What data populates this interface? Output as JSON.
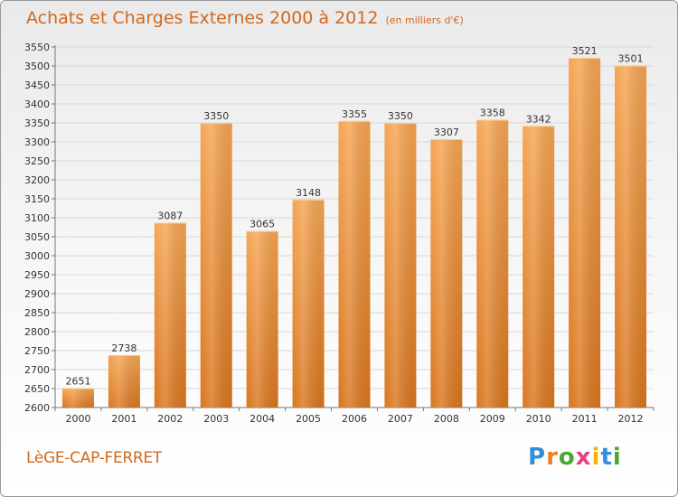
{
  "header": {
    "title": "Achats et Charges Externes 2000 à 2012",
    "subtitle": "(en milliers d'€)"
  },
  "footer": {
    "city": "LèGE-CAP-FERRET",
    "brand_letters": [
      "P",
      "r",
      "o",
      "x",
      "i",
      "t",
      "i"
    ],
    "brand_colors": [
      "#2f8fd8",
      "#f07c1e",
      "#4aa832",
      "#e83f86",
      "#f4b400",
      "#2f8fd8",
      "#4aa832"
    ]
  },
  "colors": {
    "bar_light": "#f5a553",
    "bar_dark": "#d9761f",
    "grid": "#d8d8d8",
    "title": "#d2691e"
  },
  "chart_data": {
    "type": "bar",
    "categories": [
      "2000",
      "2001",
      "2002",
      "2003",
      "2004",
      "2005",
      "2006",
      "2007",
      "2008",
      "2009",
      "2010",
      "2011",
      "2012"
    ],
    "values": [
      2651,
      2738,
      3087,
      3350,
      3065,
      3148,
      3355,
      3350,
      3307,
      3358,
      3342,
      3521,
      3501
    ],
    "ylim": [
      2600,
      3550
    ],
    "yticks": [
      2600,
      2650,
      2700,
      2750,
      2800,
      2850,
      2900,
      2950,
      3000,
      3050,
      3100,
      3150,
      3200,
      3250,
      3300,
      3350,
      3400,
      3450,
      3500,
      3550
    ],
    "grid": true
  }
}
